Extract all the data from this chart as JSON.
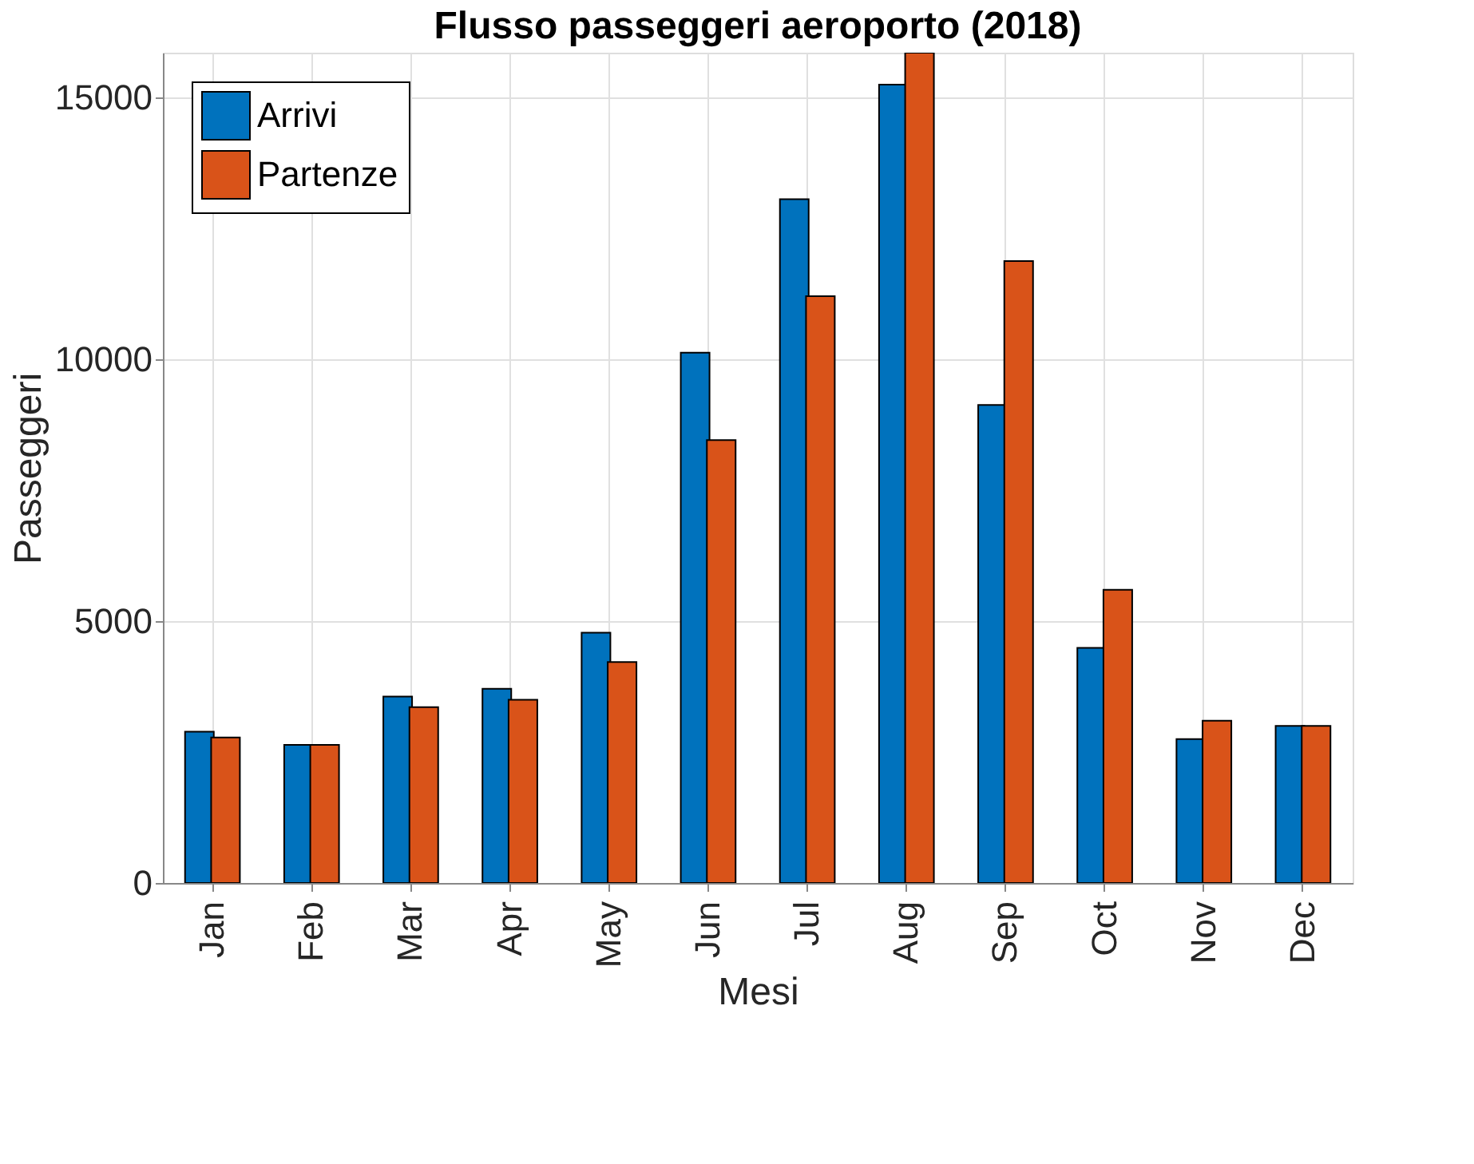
{
  "chart_data": {
    "type": "bar",
    "title": "Flusso passeggeri aeroporto (2018)",
    "xlabel": "Mesi",
    "ylabel": "Passeggeri",
    "categories": [
      "Jan",
      "Feb",
      "Mar",
      "Apr",
      "May",
      "Jun",
      "Jul",
      "Aug",
      "Sep",
      "Oct",
      "Nov",
      "Dec"
    ],
    "series": [
      {
        "name": "Arrivi",
        "color": "#0072bd",
        "values": [
          2890,
          2640,
          3560,
          3710,
          4780,
          10130,
          13060,
          15250,
          9130,
          4490,
          2750,
          3000
        ]
      },
      {
        "name": "Partenze",
        "color": "#d95319",
        "values": [
          2780,
          2640,
          3360,
          3500,
          4220,
          8460,
          11210,
          15860,
          11880,
          5600,
          3100,
          3000
        ]
      }
    ],
    "ylim": [
      0,
      15860
    ],
    "yticks": [
      0,
      5000,
      10000,
      15000
    ],
    "grid": true,
    "legend": "top left"
  }
}
